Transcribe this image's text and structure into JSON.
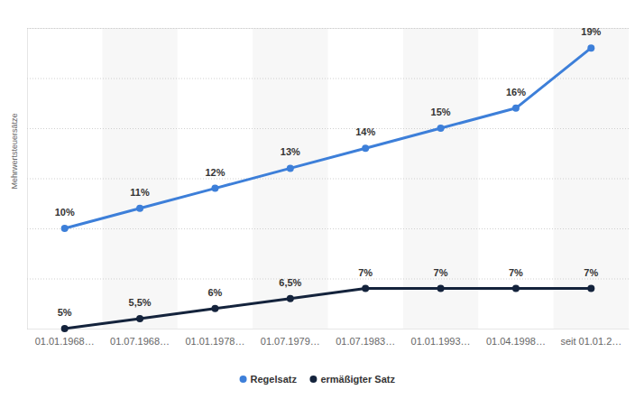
{
  "chart_data": {
    "type": "line",
    "y_label": "Mehrwertsteuersätze",
    "categories": [
      "01.01.1968…",
      "01.07.1968…",
      "01.01.1978…",
      "01.07.1979…",
      "01.07.1983…",
      "01.01.1993…",
      "01.04.1998…",
      "seit 01.01.2…"
    ],
    "series": [
      {
        "name": "Regelsatz",
        "color": "#3d7fd9",
        "marker": "circle",
        "values": [
          10,
          11,
          12,
          13,
          14,
          15,
          16,
          19
        ],
        "value_labels": [
          "10%",
          "11%",
          "12%",
          "13%",
          "14%",
          "15%",
          "16%",
          "19%"
        ]
      },
      {
        "name": "ermäßigter Satz",
        "color": "#14233c",
        "marker": "circle",
        "values": [
          5,
          5.5,
          6,
          6.5,
          7,
          7,
          7,
          7
        ],
        "value_labels": [
          "5%",
          "5,5%",
          "6%",
          "6,5%",
          "7%",
          "7%",
          "7%",
          "7%"
        ]
      }
    ],
    "ylim": [
      5,
      20
    ],
    "yticks": [
      5,
      7.5,
      10,
      12.5,
      15,
      17.5,
      20
    ],
    "grid": true,
    "legend": "bottom",
    "data_labels": true,
    "tick_labels": "x"
  }
}
